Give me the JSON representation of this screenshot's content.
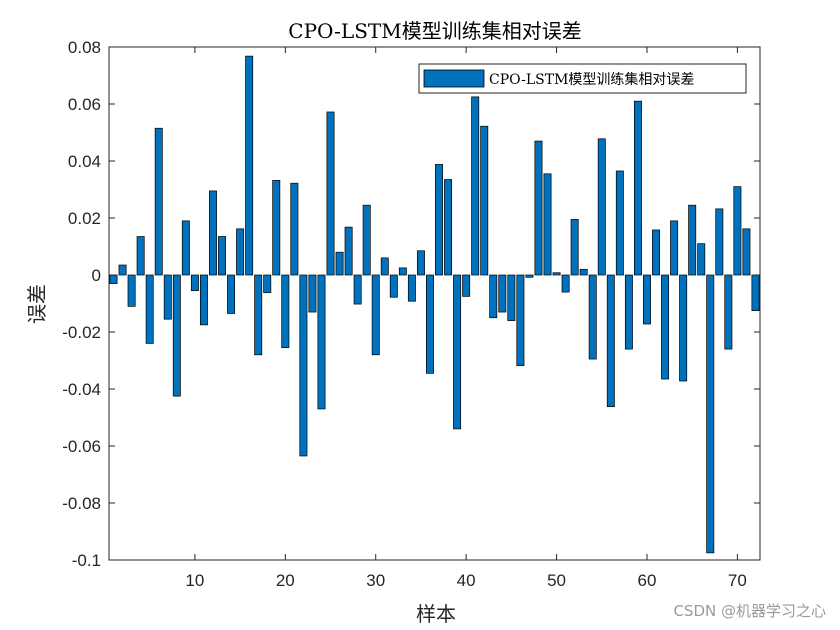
{
  "chart_data": {
    "type": "bar",
    "title": "CPO-LSTM模型训练集相对误差",
    "xlabel": "样本",
    "ylabel": "误差",
    "xlim": [
      0.5,
      72.5
    ],
    "ylim": [
      -0.1,
      0.08
    ],
    "xticks": [
      10,
      20,
      30,
      40,
      50,
      60,
      70
    ],
    "yticks": [
      -0.1,
      -0.08,
      -0.06,
      -0.04,
      -0.02,
      0,
      0.02,
      0.04,
      0.06,
      0.08
    ],
    "ytick_labels": [
      "-0.1",
      "-0.08",
      "-0.06",
      "-0.04",
      "-0.02",
      "0",
      "0.02",
      "0.04",
      "0.06",
      "0.08"
    ],
    "grid": false,
    "legend_position": "top-right",
    "series": [
      {
        "name": "CPO-LSTM模型训练集相对误差",
        "color": "#0072BD",
        "x": [
          1,
          2,
          3,
          4,
          5,
          6,
          7,
          8,
          9,
          10,
          11,
          12,
          13,
          14,
          15,
          16,
          17,
          18,
          19,
          20,
          21,
          22,
          23,
          24,
          25,
          26,
          27,
          28,
          29,
          30,
          31,
          32,
          33,
          34,
          35,
          36,
          37,
          38,
          39,
          40,
          41,
          42,
          43,
          44,
          45,
          46,
          47,
          48,
          49,
          50,
          51,
          52,
          53,
          54,
          55,
          56,
          57,
          58,
          59,
          60,
          61,
          62,
          63,
          64,
          65,
          66,
          67,
          68,
          69,
          70,
          71,
          72
        ],
        "values": [
          -0.003,
          0.0035,
          -0.011,
          0.0135,
          -0.024,
          0.0515,
          -0.0155,
          -0.0425,
          0.019,
          -0.0055,
          -0.0175,
          0.0295,
          0.0135,
          -0.0135,
          0.0162,
          0.0768,
          -0.028,
          -0.0062,
          0.0332,
          -0.0255,
          0.0322,
          -0.0635,
          -0.013,
          -0.047,
          0.0572,
          0.008,
          0.0168,
          -0.0102,
          0.0245,
          -0.028,
          0.006,
          -0.0078,
          0.0025,
          -0.0092,
          0.0085,
          -0.0345,
          0.0388,
          0.0335,
          -0.054,
          -0.0075,
          0.0625,
          0.0522,
          -0.015,
          -0.013,
          -0.016,
          -0.0318,
          -0.0008,
          0.047,
          0.0355,
          0.0008,
          -0.006,
          0.0195,
          0.002,
          -0.0295,
          0.0478,
          -0.0462,
          0.0365,
          -0.026,
          0.061,
          -0.0172,
          0.0158,
          -0.0365,
          0.019,
          -0.0372,
          0.0245,
          0.011,
          -0.0975,
          0.0232,
          -0.026,
          0.031,
          0.0162,
          -0.0125
        ]
      }
    ]
  },
  "watermark": "CSDN @机器学习之心"
}
